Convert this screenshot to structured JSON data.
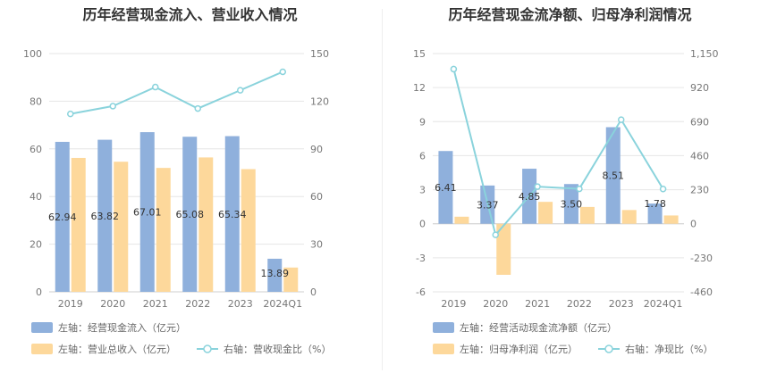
{
  "chart_data": [
    {
      "type": "bar",
      "title": "历年经营现金流入、营业收入情况",
      "categories": [
        "2019",
        "2020",
        "2021",
        "2022",
        "2023",
        "2024Q1"
      ],
      "left_axis": {
        "ticks": [
          0,
          20,
          40,
          60,
          80,
          100
        ],
        "ylim": [
          0,
          100
        ]
      },
      "right_axis": {
        "ticks": [
          0,
          30,
          60,
          90,
          120,
          150
        ],
        "ylim": [
          0,
          150
        ]
      },
      "series": [
        {
          "name": "左轴：经营现金流入（亿元）",
          "type": "bar",
          "axis": "left",
          "color": "#8fb0dc",
          "values": [
            62.94,
            63.82,
            67.01,
            65.08,
            65.34,
            13.89
          ],
          "labels": [
            "62.94",
            "63.82",
            "67.01",
            "65.08",
            "65.34",
            "13.89"
          ]
        },
        {
          "name": "左轴：营业总收入（亿元）",
          "type": "bar",
          "axis": "left",
          "color": "#fdd89b",
          "values": [
            56.2,
            54.6,
            52.0,
            56.4,
            51.5,
            10.2
          ]
        },
        {
          "name": "右轴：营收现金比（%）",
          "type": "line",
          "axis": "right",
          "color": "#8ad3dc",
          "values": [
            112.0,
            116.9,
            128.9,
            115.4,
            126.9,
            138.5
          ]
        }
      ]
    },
    {
      "type": "bar",
      "title": "历年经营现金流净额、归母净利润情况",
      "categories": [
        "2019",
        "2020",
        "2021",
        "2022",
        "2023",
        "2024Q1"
      ],
      "left_axis": {
        "ticks": [
          -6,
          -3,
          0,
          3,
          6,
          9,
          12,
          15
        ],
        "ylim": [
          -6,
          15
        ]
      },
      "right_axis": {
        "ticks": [
          -460,
          -230,
          0,
          230,
          460,
          690,
          920,
          1150
        ],
        "tick_labels": [
          "-460",
          "-230",
          "0",
          "230",
          "460",
          "690",
          "920",
          "1,150"
        ],
        "ylim": [
          -460,
          1150
        ]
      },
      "series": [
        {
          "name": "左轴：经营活动现金流净额（亿元）",
          "type": "bar",
          "axis": "left",
          "color": "#8fb0dc",
          "values": [
            6.41,
            3.37,
            4.85,
            3.5,
            8.51,
            1.78
          ],
          "labels": [
            "6.41",
            "3.37",
            "4.85",
            "3.50",
            "8.51",
            "1.78"
          ]
        },
        {
          "name": "左轴：归母净利润（亿元）",
          "type": "bar",
          "axis": "left",
          "color": "#fdd89b",
          "values": [
            0.62,
            -4.5,
            1.93,
            1.48,
            1.21,
            0.73
          ]
        },
        {
          "name": "右轴：净现比（%）",
          "type": "line",
          "axis": "right",
          "color": "#8ad3dc",
          "values": [
            1045,
            -75,
            251,
            236,
            703,
            235
          ]
        }
      ]
    }
  ]
}
